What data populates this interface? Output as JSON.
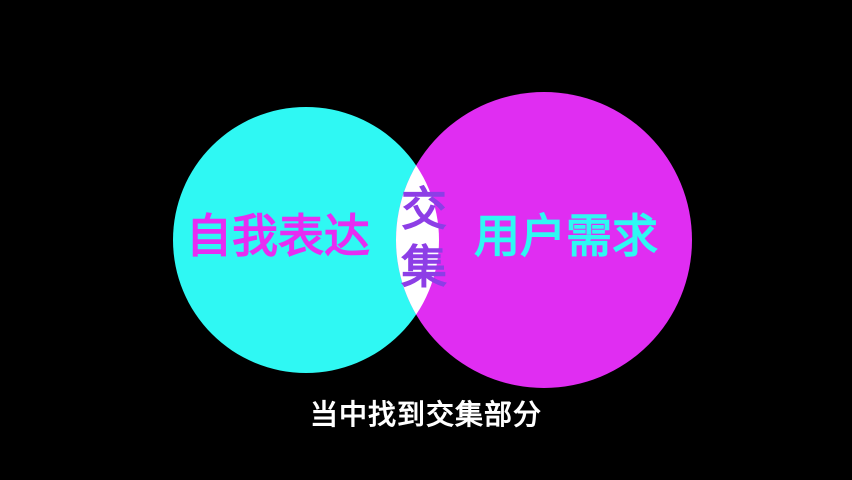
{
  "diagram": {
    "left_set": {
      "label": "自我表达",
      "color": "#2ff8f3",
      "text_color": "#e62df2"
    },
    "right_set": {
      "label": "用户需求",
      "color": "#e02df2",
      "text_color": "#2ff8f3"
    },
    "intersection": {
      "label_top": "交",
      "label_bottom": "集",
      "color": "#ffffff",
      "text_color": "#8d3ee6"
    }
  },
  "subtitle": "当中找到交集部分"
}
